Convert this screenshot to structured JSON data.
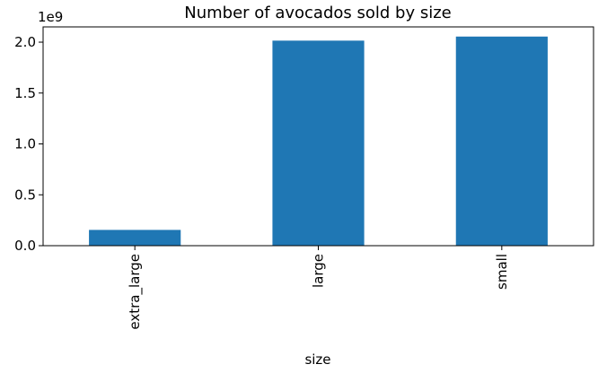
{
  "chart_data": {
    "type": "bar",
    "title": "Number of avocados sold by size",
    "xlabel": "size",
    "ylabel": "",
    "categories": [
      "extra_large",
      "large",
      "small"
    ],
    "values": [
      155000000.0,
      2015000000.0,
      2055000000.0
    ],
    "ylim": [
      0,
      2150000000.0
    ],
    "y_ticks": [
      0,
      500000000.0,
      1000000000.0,
      1500000000.0,
      2000000000.0
    ],
    "y_tick_labels": [
      "0.0",
      "0.5",
      "1.0",
      "1.5",
      "2.0"
    ],
    "y_offset_label": "1e9",
    "bar_color": "#1f77b4",
    "grid": false,
    "legend": false
  }
}
